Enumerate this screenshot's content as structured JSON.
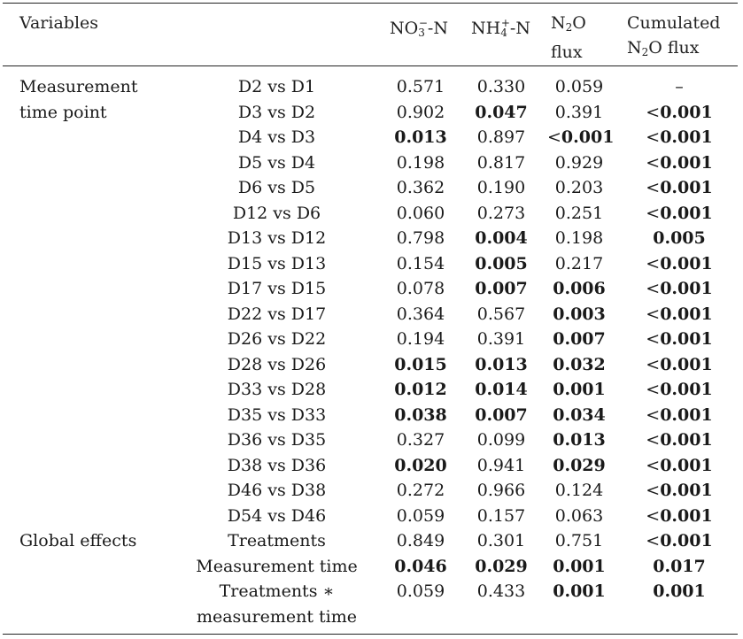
{
  "headers": {
    "variables": "Variables",
    "no3": {
      "base": "NO",
      "sub": "3",
      "sup": "−",
      "tail": "-N"
    },
    "nh4": {
      "base": "NH",
      "sub": "4",
      "sup": "+",
      "tail": "-N"
    },
    "n2o": {
      "line1a": "N",
      "sub": "2",
      "line1b": "O",
      "line2": "flux"
    },
    "cum": {
      "line1": "Cumulated",
      "line2a": "N",
      "sub": "2",
      "line2b": "O flux"
    }
  },
  "rows": [
    {
      "cat": "Measurement",
      "cmp": "D2 vs D1",
      "no3": "0.571",
      "nh4": "0.330",
      "n2o": "0.059",
      "cum": "–"
    },
    {
      "cat": "time point",
      "cmp": "D3 vs D2",
      "no3": "0.902",
      "nh4": "0.047",
      "n2o": "0.391",
      "cum": "<0.001"
    },
    {
      "cat": "",
      "cmp": "D4 vs D3",
      "no3": "0.013",
      "nh4": "0.897",
      "n2o": "<0.001",
      "cum": "<0.001"
    },
    {
      "cat": "",
      "cmp": "D5 vs D4",
      "no3": "0.198",
      "nh4": "0.817",
      "n2o": "0.929",
      "cum": "<0.001"
    },
    {
      "cat": "",
      "cmp": "D6 vs D5",
      "no3": "0.362",
      "nh4": "0.190",
      "n2o": "0.203",
      "cum": "<0.001"
    },
    {
      "cat": "",
      "cmp": "D12 vs D6",
      "no3": "0.060",
      "nh4": "0.273",
      "n2o": "0.251",
      "cum": "<0.001"
    },
    {
      "cat": "",
      "cmp": "D13 vs D12",
      "no3": "0.798",
      "nh4": "0.004",
      "n2o": "0.198",
      "cum": "0.005"
    },
    {
      "cat": "",
      "cmp": "D15 vs D13",
      "no3": "0.154",
      "nh4": "0.005",
      "n2o": "0.217",
      "cum": "<0.001"
    },
    {
      "cat": "",
      "cmp": "D17 vs D15",
      "no3": "0.078",
      "nh4": "0.007",
      "n2o": "0.006",
      "cum": "<0.001"
    },
    {
      "cat": "",
      "cmp": "D22 vs D17",
      "no3": "0.364",
      "nh4": "0.567",
      "n2o": "0.003",
      "cum": "<0.001"
    },
    {
      "cat": "",
      "cmp": "D26 vs D22",
      "no3": "0.194",
      "nh4": "0.391",
      "n2o": "0.007",
      "cum": "<0.001"
    },
    {
      "cat": "",
      "cmp": "D28 vs D26",
      "no3": "0.015",
      "nh4": "0.013",
      "n2o": "0.032",
      "cum": "<0.001"
    },
    {
      "cat": "",
      "cmp": "D33 vs D28",
      "no3": "0.012",
      "nh4": "0.014",
      "n2o": "0.001",
      "cum": "<0.001"
    },
    {
      "cat": "",
      "cmp": "D35 vs D33",
      "no3": "0.038",
      "nh4": "0.007",
      "n2o": "0.034",
      "cum": "<0.001"
    },
    {
      "cat": "",
      "cmp": "D36 vs D35",
      "no3": "0.327",
      "nh4": "0.099",
      "n2o": "0.013",
      "cum": "<0.001"
    },
    {
      "cat": "",
      "cmp": "D38 vs D36",
      "no3": "0.020",
      "nh4": "0.941",
      "n2o": "0.029",
      "cum": "<0.001"
    },
    {
      "cat": "",
      "cmp": "D46 vs D38",
      "no3": "0.272",
      "nh4": "0.966",
      "n2o": "0.124",
      "cum": "<0.001"
    },
    {
      "cat": "",
      "cmp": "D54 vs D46",
      "no3": "0.059",
      "nh4": "0.157",
      "n2o": "0.063",
      "cum": "<0.001"
    },
    {
      "cat": "Global effects",
      "cmp": "Treatments",
      "no3": "0.849",
      "nh4": "0.301",
      "n2o": "0.751",
      "cum": "<0.001"
    },
    {
      "cat": "",
      "cmp": "Measurement time",
      "no3": "0.046",
      "nh4": "0.029",
      "n2o": "0.001",
      "cum": "0.017"
    },
    {
      "cat": "",
      "cmp": "Treatments ∗",
      "no3": "0.059",
      "nh4": "0.433",
      "n2o": "0.001",
      "cum": "0.001"
    },
    {
      "cat": "",
      "cmp": "measurement time",
      "no3": "",
      "nh4": "",
      "n2o": "",
      "cum": ""
    }
  ],
  "bold_cells": {
    "no3": [
      2,
      11,
      12,
      13,
      15,
      19
    ],
    "nh4": [
      1,
      6,
      7,
      8,
      11,
      12,
      13,
      19
    ],
    "n2o": [
      2,
      8,
      9,
      10,
      11,
      12,
      13,
      14,
      15,
      19,
      20
    ],
    "cum": [
      1,
      2,
      3,
      4,
      5,
      6,
      7,
      8,
      9,
      10,
      11,
      12,
      13,
      14,
      15,
      16,
      17,
      18,
      19,
      20
    ]
  }
}
